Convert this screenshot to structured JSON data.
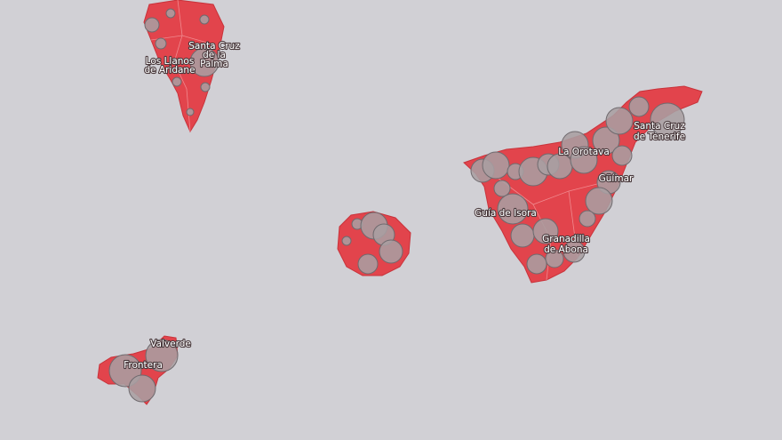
{
  "places": [
    {
      "lines": [
        "Santa Cruz",
        "de la",
        "Palma"
      ]
    },
    {
      "lines": [
        "Los Llanos",
        "de Aridane"
      ]
    },
    {
      "lines": [
        "La Orotava"
      ]
    },
    {
      "lines": [
        "Santa Cruz",
        "de Tenerife"
      ]
    },
    {
      "lines": [
        "Güímar"
      ]
    },
    {
      "lines": [
        "Guía de Isora"
      ]
    },
    {
      "lines": [
        "Granadilla",
        "de Abona"
      ]
    },
    {
      "lines": [
        "Valverde"
      ]
    },
    {
      "lines": [
        "Frontera"
      ]
    }
  ]
}
